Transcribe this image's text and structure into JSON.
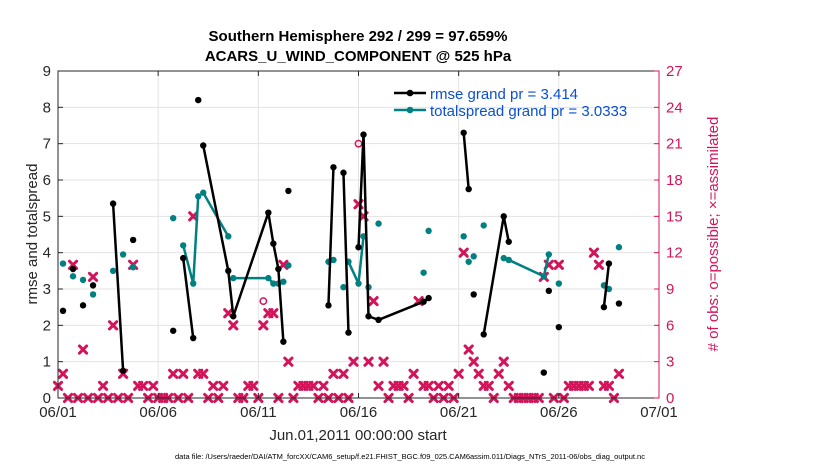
{
  "chart_data": {
    "type": "line",
    "title_line1": "Southern Hemisphere 292 / 299 = 97.659%",
    "title_line2": "ACARS_U_WIND_COMPONENT @ 525 hPa",
    "xlabel": "Jun.01,2011 00:00:00 start",
    "ylabel_left": "rmse and totalspread",
    "ylabel_right": "# of obs: o=possible; ×=assimilated",
    "footer": "data file: /Users/raeder/DAI/ATM_forcXX/CAM6_setup/f.e21.FHIST_BGC.f09_025.CAM6assim.011/Diags_NTrS_2011-06/obs_diag_output.nc",
    "xlim": [
      0,
      30
    ],
    "ylim_left": [
      0,
      9
    ],
    "ylim_right": [
      0,
      27
    ],
    "x_ticks": [
      0,
      5,
      10,
      15,
      20,
      25,
      30
    ],
    "x_tick_labels": [
      "06/01",
      "06/06",
      "06/11",
      "06/16",
      "06/21",
      "06/26",
      "07/01"
    ],
    "y_left_ticks": [
      0,
      1,
      2,
      3,
      4,
      5,
      6,
      7,
      8,
      9
    ],
    "y_right_ticks": [
      0,
      3,
      6,
      9,
      12,
      15,
      18,
      21,
      24,
      27
    ],
    "colors": {
      "rmse": "#000000",
      "spread": "#008080",
      "obs": "#d4145a",
      "legend_text": "#0a50d2",
      "right_axis": "#d4145a",
      "grid": "#e3e3e3"
    },
    "series": [
      {
        "name": "rmse",
        "legend": "rmse grand pr = 3.414",
        "points": [
          [
            0.25,
            2.4
          ],
          [
            0.75,
            3.55
          ],
          [
            1.25,
            2.55
          ],
          [
            1.75,
            3.1
          ],
          [
            2.75,
            5.35
          ],
          [
            3.25,
            0.75
          ],
          [
            3.75,
            4.35
          ],
          [
            5.75,
            1.85
          ],
          [
            6.25,
            3.85
          ],
          [
            6.75,
            1.65
          ],
          [
            7.0,
            8.2
          ],
          [
            7.25,
            6.95
          ],
          [
            8.5,
            3.5
          ],
          [
            8.75,
            2.25
          ],
          [
            10.5,
            5.1
          ],
          [
            10.75,
            4.25
          ],
          [
            11.0,
            3.55
          ],
          [
            11.25,
            1.55
          ],
          [
            11.5,
            5.7
          ],
          [
            13.5,
            2.55
          ],
          [
            13.75,
            6.35
          ],
          [
            14.25,
            6.2
          ],
          [
            14.5,
            1.8
          ],
          [
            15.0,
            4.15
          ],
          [
            15.25,
            7.25
          ],
          [
            15.5,
            2.25
          ],
          [
            16.0,
            2.15
          ],
          [
            18.25,
            2.65
          ],
          [
            18.5,
            2.75
          ],
          [
            20.25,
            7.3
          ],
          [
            20.5,
            5.75
          ],
          [
            20.75,
            2.85
          ],
          [
            21.25,
            1.75
          ],
          [
            22.25,
            5.0
          ],
          [
            22.5,
            4.3
          ],
          [
            24.25,
            0.7
          ],
          [
            24.5,
            2.95
          ],
          [
            25.0,
            1.95
          ],
          [
            27.25,
            2.5
          ],
          [
            27.5,
            3.7
          ],
          [
            28.0,
            2.6
          ]
        ],
        "segments": [
          [
            5,
            6
          ],
          [
            9,
            10
          ],
          [
            12,
            13,
            14,
            15,
            16,
            17,
            18
          ],
          [
            20,
            21
          ],
          [
            22,
            23
          ],
          [
            24,
            25,
            26,
            27,
            28,
            29
          ],
          [
            30,
            31
          ],
          [
            33,
            34,
            35
          ],
          [
            39,
            40
          ],
          [
            41,
            42,
            43,
            44
          ],
          [
            47,
            48
          ],
          [
            49,
            50,
            51
          ]
        ]
      },
      {
        "name": "totalspread",
        "legend": "totalspread grand pr = 3.0333",
        "points": [
          [
            0.25,
            3.7
          ],
          [
            0.75,
            3.35
          ],
          [
            1.25,
            3.25
          ],
          [
            1.75,
            2.85
          ],
          [
            2.75,
            3.5
          ],
          [
            3.25,
            3.95
          ],
          [
            3.75,
            3.6
          ],
          [
            5.75,
            4.95
          ],
          [
            6.25,
            4.2
          ],
          [
            6.75,
            3.15
          ],
          [
            7.0,
            5.55
          ],
          [
            7.25,
            5.65
          ],
          [
            8.5,
            4.45
          ],
          [
            8.75,
            3.3
          ],
          [
            10.5,
            3.3
          ],
          [
            10.75,
            3.15
          ],
          [
            11.0,
            3.15
          ],
          [
            11.25,
            3.2
          ],
          [
            11.5,
            3.65
          ],
          [
            13.5,
            3.75
          ],
          [
            13.75,
            3.8
          ],
          [
            14.25,
            3.05
          ],
          [
            14.5,
            3.75
          ],
          [
            15.0,
            3.15
          ],
          [
            15.25,
            4.45
          ],
          [
            15.5,
            3.05
          ],
          [
            16.0,
            4.8
          ],
          [
            18.25,
            3.45
          ],
          [
            18.5,
            4.6
          ],
          [
            20.25,
            4.45
          ],
          [
            20.5,
            3.75
          ],
          [
            20.75,
            3.9
          ],
          [
            21.25,
            4.75
          ],
          [
            22.25,
            3.85
          ],
          [
            22.5,
            3.8
          ],
          [
            24.25,
            3.35
          ],
          [
            24.5,
            3.95
          ],
          [
            25.0,
            3.15
          ],
          [
            27.25,
            3.1
          ],
          [
            27.5,
            3.0
          ],
          [
            28.0,
            4.15
          ]
        ],
        "segments": [
          [
            9,
            10,
            11
          ],
          [
            12,
            13
          ],
          [
            14,
            15,
            16,
            17,
            18
          ],
          [
            23,
            24,
            25
          ],
          [
            26
          ],
          [
            35,
            36,
            37
          ]
        ]
      }
    ],
    "obs_assimilated": [
      [
        0,
        1
      ],
      [
        0.25,
        2
      ],
      [
        0.5,
        0
      ],
      [
        0.75,
        11
      ],
      [
        1,
        0
      ],
      [
        1.25,
        4
      ],
      [
        1.5,
        0
      ],
      [
        1.75,
        10
      ],
      [
        2,
        0
      ],
      [
        2.25,
        1
      ],
      [
        2.5,
        0
      ],
      [
        2.75,
        6
      ],
      [
        3,
        0
      ],
      [
        3.25,
        2
      ],
      [
        3.5,
        0
      ],
      [
        3.75,
        11
      ],
      [
        4,
        1
      ],
      [
        4.25,
        1
      ],
      [
        4.5,
        0
      ],
      [
        4.75,
        1
      ],
      [
        5,
        0
      ],
      [
        5.25,
        0
      ],
      [
        5.5,
        0
      ],
      [
        5.75,
        2
      ],
      [
        6,
        0
      ],
      [
        6.25,
        2
      ],
      [
        6.5,
        0
      ],
      [
        6.75,
        15
      ],
      [
        7,
        2
      ],
      [
        7.25,
        2
      ],
      [
        7.5,
        0
      ],
      [
        7.75,
        1
      ],
      [
        8,
        0
      ],
      [
        8.25,
        1
      ],
      [
        8.5,
        7
      ],
      [
        8.75,
        6
      ],
      [
        9,
        0
      ],
      [
        9.25,
        0
      ],
      [
        9.5,
        1
      ],
      [
        9.75,
        1
      ],
      [
        10,
        0
      ],
      [
        10.25,
        6
      ],
      [
        10.5,
        7
      ],
      [
        10.75,
        7
      ],
      [
        11,
        0
      ],
      [
        11.25,
        11
      ],
      [
        11.5,
        3
      ],
      [
        11.75,
        0
      ],
      [
        12,
        1
      ],
      [
        12.25,
        1
      ],
      [
        12.5,
        1
      ],
      [
        12.75,
        1
      ],
      [
        13,
        0
      ],
      [
        13.25,
        1
      ],
      [
        13.5,
        0
      ],
      [
        13.75,
        2
      ],
      [
        14,
        0
      ],
      [
        14.25,
        2
      ],
      [
        14.5,
        0
      ],
      [
        14.75,
        3
      ],
      [
        15,
        16
      ],
      [
        15.25,
        15
      ],
      [
        15.5,
        3
      ],
      [
        15.75,
        8
      ],
      [
        16,
        1
      ],
      [
        16.25,
        3
      ],
      [
        16.5,
        0
      ],
      [
        16.75,
        1
      ],
      [
        17,
        1
      ],
      [
        17.25,
        1
      ],
      [
        17.5,
        0
      ],
      [
        17.75,
        2
      ],
      [
        18,
        8
      ],
      [
        18.25,
        1
      ],
      [
        18.5,
        1
      ],
      [
        18.75,
        0
      ],
      [
        19,
        1
      ],
      [
        19.25,
        0
      ],
      [
        19.5,
        1
      ],
      [
        19.75,
        0
      ],
      [
        20,
        2
      ],
      [
        20.25,
        12
      ],
      [
        20.5,
        4
      ],
      [
        20.75,
        3
      ],
      [
        21,
        2
      ],
      [
        21.25,
        1
      ],
      [
        21.5,
        1
      ],
      [
        21.75,
        0
      ],
      [
        22,
        2
      ],
      [
        22.25,
        3
      ],
      [
        22.5,
        1
      ],
      [
        22.75,
        0
      ],
      [
        23,
        0
      ],
      [
        23.25,
        0
      ],
      [
        23.5,
        0
      ],
      [
        23.75,
        0
      ],
      [
        24,
        0
      ],
      [
        24.25,
        10
      ],
      [
        24.5,
        11
      ],
      [
        24.75,
        0
      ],
      [
        25,
        11
      ],
      [
        25.25,
        0
      ],
      [
        25.5,
        1
      ],
      [
        25.75,
        1
      ],
      [
        26,
        1
      ],
      [
        26.25,
        1
      ],
      [
        26.5,
        1
      ],
      [
        26.75,
        12
      ],
      [
        27,
        11
      ],
      [
        27.25,
        1
      ],
      [
        27.5,
        1
      ],
      [
        27.75,
        0
      ],
      [
        28,
        2
      ]
    ],
    "obs_possible_only": [
      [
        10.25,
        8
      ],
      [
        15,
        21
      ]
    ]
  }
}
